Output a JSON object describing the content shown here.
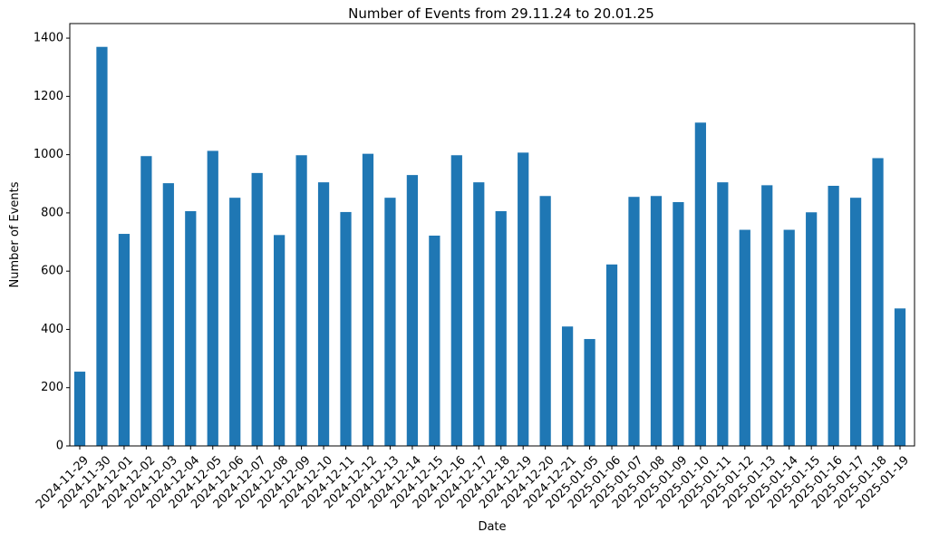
{
  "chart_data": {
    "type": "bar",
    "title": "Number of Events from 29.11.24 to 20.01.25",
    "xlabel": "Date",
    "ylabel": "Number of Events",
    "ylim": [
      0,
      1450
    ],
    "yticks": [
      0,
      200,
      400,
      600,
      800,
      1000,
      1200,
      1400
    ],
    "grid": false,
    "legend": "none",
    "color": "#1f77b4",
    "categories": [
      "2024-11-29",
      "2024-11-30",
      "2024-12-01",
      "2024-12-02",
      "2024-12-03",
      "2024-12-04",
      "2024-12-05",
      "2024-12-06",
      "2024-12-07",
      "2024-12-08",
      "2024-12-09",
      "2024-12-10",
      "2024-12-11",
      "2024-12-12",
      "2024-12-13",
      "2024-12-14",
      "2024-12-15",
      "2024-12-16",
      "2024-12-17",
      "2024-12-18",
      "2024-12-19",
      "2024-12-20",
      "2024-12-21",
      "2025-01-05",
      "2025-01-06",
      "2025-01-07",
      "2025-01-08",
      "2025-01-09",
      "2025-01-10",
      "2025-01-11",
      "2025-01-12",
      "2025-01-13",
      "2025-01-14",
      "2025-01-15",
      "2025-01-16",
      "2025-01-17",
      "2025-01-18",
      "2025-01-19"
    ],
    "values": [
      255,
      1370,
      728,
      995,
      902,
      806,
      1013,
      852,
      937,
      724,
      998,
      905,
      803,
      1003,
      852,
      930,
      722,
      998,
      905,
      806,
      1007,
      858,
      410,
      367,
      623,
      855,
      858,
      837,
      1110,
      905,
      742,
      895,
      742,
      802,
      893,
      852,
      988,
      472
    ]
  }
}
